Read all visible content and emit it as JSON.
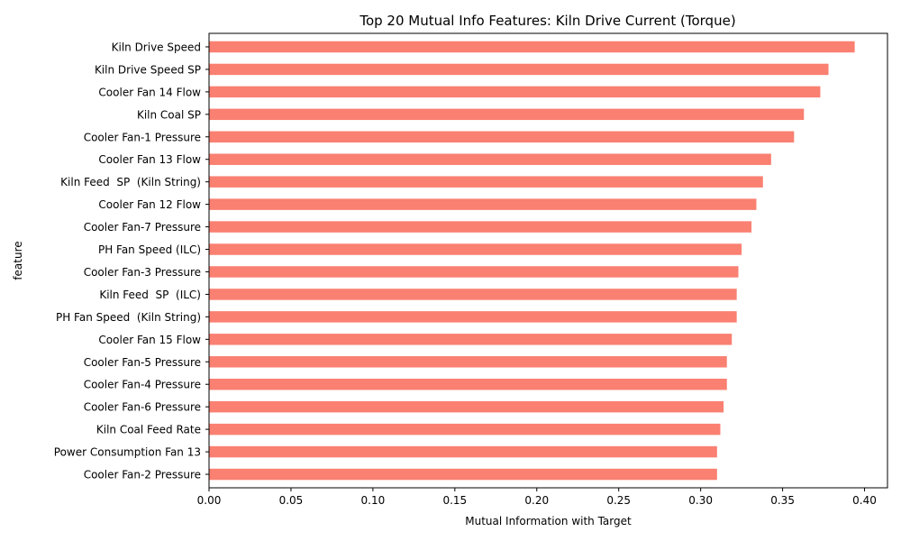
{
  "chart_data": {
    "type": "bar",
    "orientation": "horizontal",
    "title": "Top 20 Mutual Info Features: Kiln Drive Current (Torque)",
    "xlabel": "Mutual Information with Target",
    "ylabel": "feature",
    "xlim": [
      0.0,
      0.414
    ],
    "xticks": [
      "0.00",
      "0.05",
      "0.10",
      "0.15",
      "0.20",
      "0.25",
      "0.30",
      "0.35",
      "0.40"
    ],
    "bar_color": "#fa8072",
    "grid": false,
    "categories": [
      "Kiln Drive Speed",
      "Kiln Drive Speed SP",
      "Cooler Fan 14 Flow",
      "Kiln Coal SP",
      "Cooler Fan-1 Pressure",
      "Cooler Fan 13 Flow",
      "Kiln Feed  SP  (Kiln String)",
      "Cooler Fan 12 Flow",
      "Cooler Fan-7 Pressure",
      "PH Fan Speed (ILC)",
      "Cooler Fan-3 Pressure",
      "Kiln Feed  SP  (ILC)",
      "PH Fan Speed  (Kiln String)",
      "Cooler Fan 15 Flow",
      "Cooler Fan-5 Pressure",
      "Cooler Fan-4 Pressure",
      "Cooler Fan-6 Pressure",
      "Kiln Coal Feed Rate",
      "Power Consumption Fan 13",
      "Cooler Fan-2 Pressure"
    ],
    "values": [
      0.394,
      0.378,
      0.373,
      0.363,
      0.357,
      0.343,
      0.338,
      0.334,
      0.331,
      0.325,
      0.323,
      0.322,
      0.322,
      0.319,
      0.316,
      0.316,
      0.314,
      0.312,
      0.31,
      0.31
    ]
  }
}
